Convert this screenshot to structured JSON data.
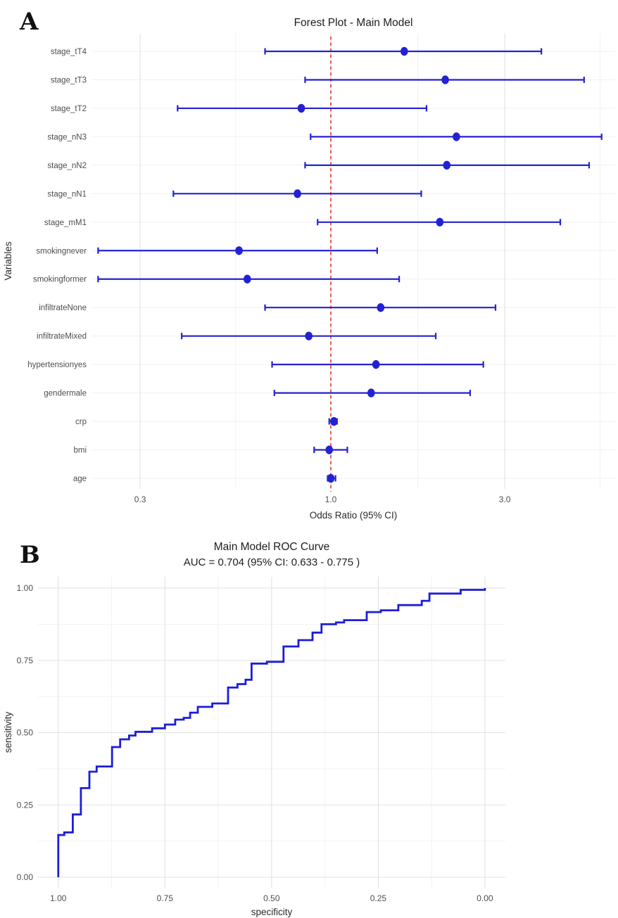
{
  "panels": {
    "a": {
      "label": "A",
      "title": "Forest Plot - Main Model",
      "xlabel": "Odds Ratio (95% CI)",
      "ylabel": "Variables"
    },
    "b": {
      "label": "B",
      "title": "Main Model ROC Curve",
      "subtitle": "AUC = 0.704 (95% CI: 0.633 - 0.775 )",
      "xlabel": "specificity",
      "ylabel": "sensitivity"
    }
  },
  "colors": {
    "estimate_blue": "#2222d2",
    "roc_blue": "#1d1dd8",
    "reference_red": "#ee2f2f",
    "grid_major": "#e2e2e2",
    "grid_minor": "#f1f1f1",
    "tick_text": "#4d4d4d"
  },
  "chart_data": [
    {
      "id": "forest_plot",
      "type": "scatter",
      "title": "Forest Plot - Main Model",
      "xlabel": "Odds Ratio (95% CI)",
      "ylabel": "Variables",
      "x_scale": "log",
      "reference_line_x": 1.0,
      "x_ticks": [
        {
          "label": "0.3",
          "value": 0.3
        },
        {
          "label": "1.0",
          "value": 1.0
        },
        {
          "label": "3.0",
          "value": 3.0
        }
      ],
      "x_minor_ticks": [
        0.548,
        1.732,
        5.477
      ],
      "rows": [
        {
          "variable": "stage_tT4",
          "or": 1.59,
          "ci_low": 0.66,
          "ci_high": 3.78
        },
        {
          "variable": "stage_tT3",
          "or": 2.06,
          "ci_low": 0.85,
          "ci_high": 4.95
        },
        {
          "variable": "stage_tT2",
          "or": 0.83,
          "ci_low": 0.38,
          "ci_high": 1.83
        },
        {
          "variable": "stage_nN3",
          "or": 2.21,
          "ci_low": 0.88,
          "ci_high": 5.53
        },
        {
          "variable": "stage_nN2",
          "or": 2.08,
          "ci_low": 0.85,
          "ci_high": 5.11
        },
        {
          "variable": "stage_nN1",
          "or": 0.81,
          "ci_low": 0.37,
          "ci_high": 1.77
        },
        {
          "variable": "stage_mM1",
          "or": 1.99,
          "ci_low": 0.92,
          "ci_high": 4.26
        },
        {
          "variable": "smokingnever",
          "or": 0.56,
          "ci_low": 0.23,
          "ci_high": 1.34
        },
        {
          "variable": "smokingformer",
          "or": 0.59,
          "ci_low": 0.23,
          "ci_high": 1.54
        },
        {
          "variable": "infiltrateNone",
          "or": 1.37,
          "ci_low": 0.66,
          "ci_high": 2.83
        },
        {
          "variable": "infiltrateMixed",
          "or": 0.87,
          "ci_low": 0.39,
          "ci_high": 1.94
        },
        {
          "variable": "hypertensionyes",
          "or": 1.33,
          "ci_low": 0.69,
          "ci_high": 2.62
        },
        {
          "variable": "gendermale",
          "or": 1.29,
          "ci_low": 0.7,
          "ci_high": 2.41
        },
        {
          "variable": "crp",
          "or": 1.02,
          "ci_low": 0.99,
          "ci_high": 1.04
        },
        {
          "variable": "bmi",
          "or": 0.99,
          "ci_low": 0.9,
          "ci_high": 1.11
        },
        {
          "variable": "age",
          "or": 1.0,
          "ci_low": 0.98,
          "ci_high": 1.03
        }
      ]
    },
    {
      "id": "roc_curve",
      "type": "line",
      "title": "Main Model ROC Curve",
      "subtitle": "AUC = 0.704 (95% CI: 0.633 - 0.775 )",
      "auc": 0.704,
      "auc_ci": [
        0.633,
        0.775
      ],
      "xlabel": "specificity",
      "ylabel": "sensitivity",
      "x_reversed": true,
      "x_ticks": [
        {
          "label": "1.00",
          "value": 1.0
        },
        {
          "label": "0.75",
          "value": 0.75
        },
        {
          "label": "0.50",
          "value": 0.5
        },
        {
          "label": "0.25",
          "value": 0.25
        },
        {
          "label": "0.00",
          "value": 0.0
        }
      ],
      "y_ticks": [
        {
          "label": "0.00",
          "value": 0.0
        },
        {
          "label": "0.25",
          "value": 0.25
        },
        {
          "label": "0.50",
          "value": 0.5
        },
        {
          "label": "0.75",
          "value": 0.75
        },
        {
          "label": "1.00",
          "value": 1.0
        }
      ],
      "x_minor_ticks": [
        0.875,
        0.625,
        0.375,
        0.125
      ],
      "y_minor_ticks": [
        0.125,
        0.375,
        0.625,
        0.875
      ],
      "points": [
        [
          1.0,
          0.0
        ],
        [
          1.0,
          0.146
        ],
        [
          0.986,
          0.155
        ],
        [
          0.966,
          0.217
        ],
        [
          0.947,
          0.308
        ],
        [
          0.927,
          0.365
        ],
        [
          0.91,
          0.383
        ],
        [
          0.874,
          0.45
        ],
        [
          0.855,
          0.477
        ],
        [
          0.834,
          0.49
        ],
        [
          0.819,
          0.503
        ],
        [
          0.78,
          0.515
        ],
        [
          0.75,
          0.528
        ],
        [
          0.726,
          0.545
        ],
        [
          0.706,
          0.551
        ],
        [
          0.691,
          0.569
        ],
        [
          0.673,
          0.589
        ],
        [
          0.639,
          0.601
        ],
        [
          0.602,
          0.656
        ],
        [
          0.58,
          0.668
        ],
        [
          0.561,
          0.683
        ],
        [
          0.547,
          0.739
        ],
        [
          0.511,
          0.745
        ],
        [
          0.472,
          0.798
        ],
        [
          0.437,
          0.82
        ],
        [
          0.404,
          0.846
        ],
        [
          0.383,
          0.875
        ],
        [
          0.349,
          0.881
        ],
        [
          0.33,
          0.889
        ],
        [
          0.277,
          0.917
        ],
        [
          0.244,
          0.923
        ],
        [
          0.203,
          0.941
        ],
        [
          0.148,
          0.956
        ],
        [
          0.13,
          0.981
        ],
        [
          0.057,
          0.994
        ],
        [
          0.0,
          1.0
        ]
      ]
    }
  ]
}
